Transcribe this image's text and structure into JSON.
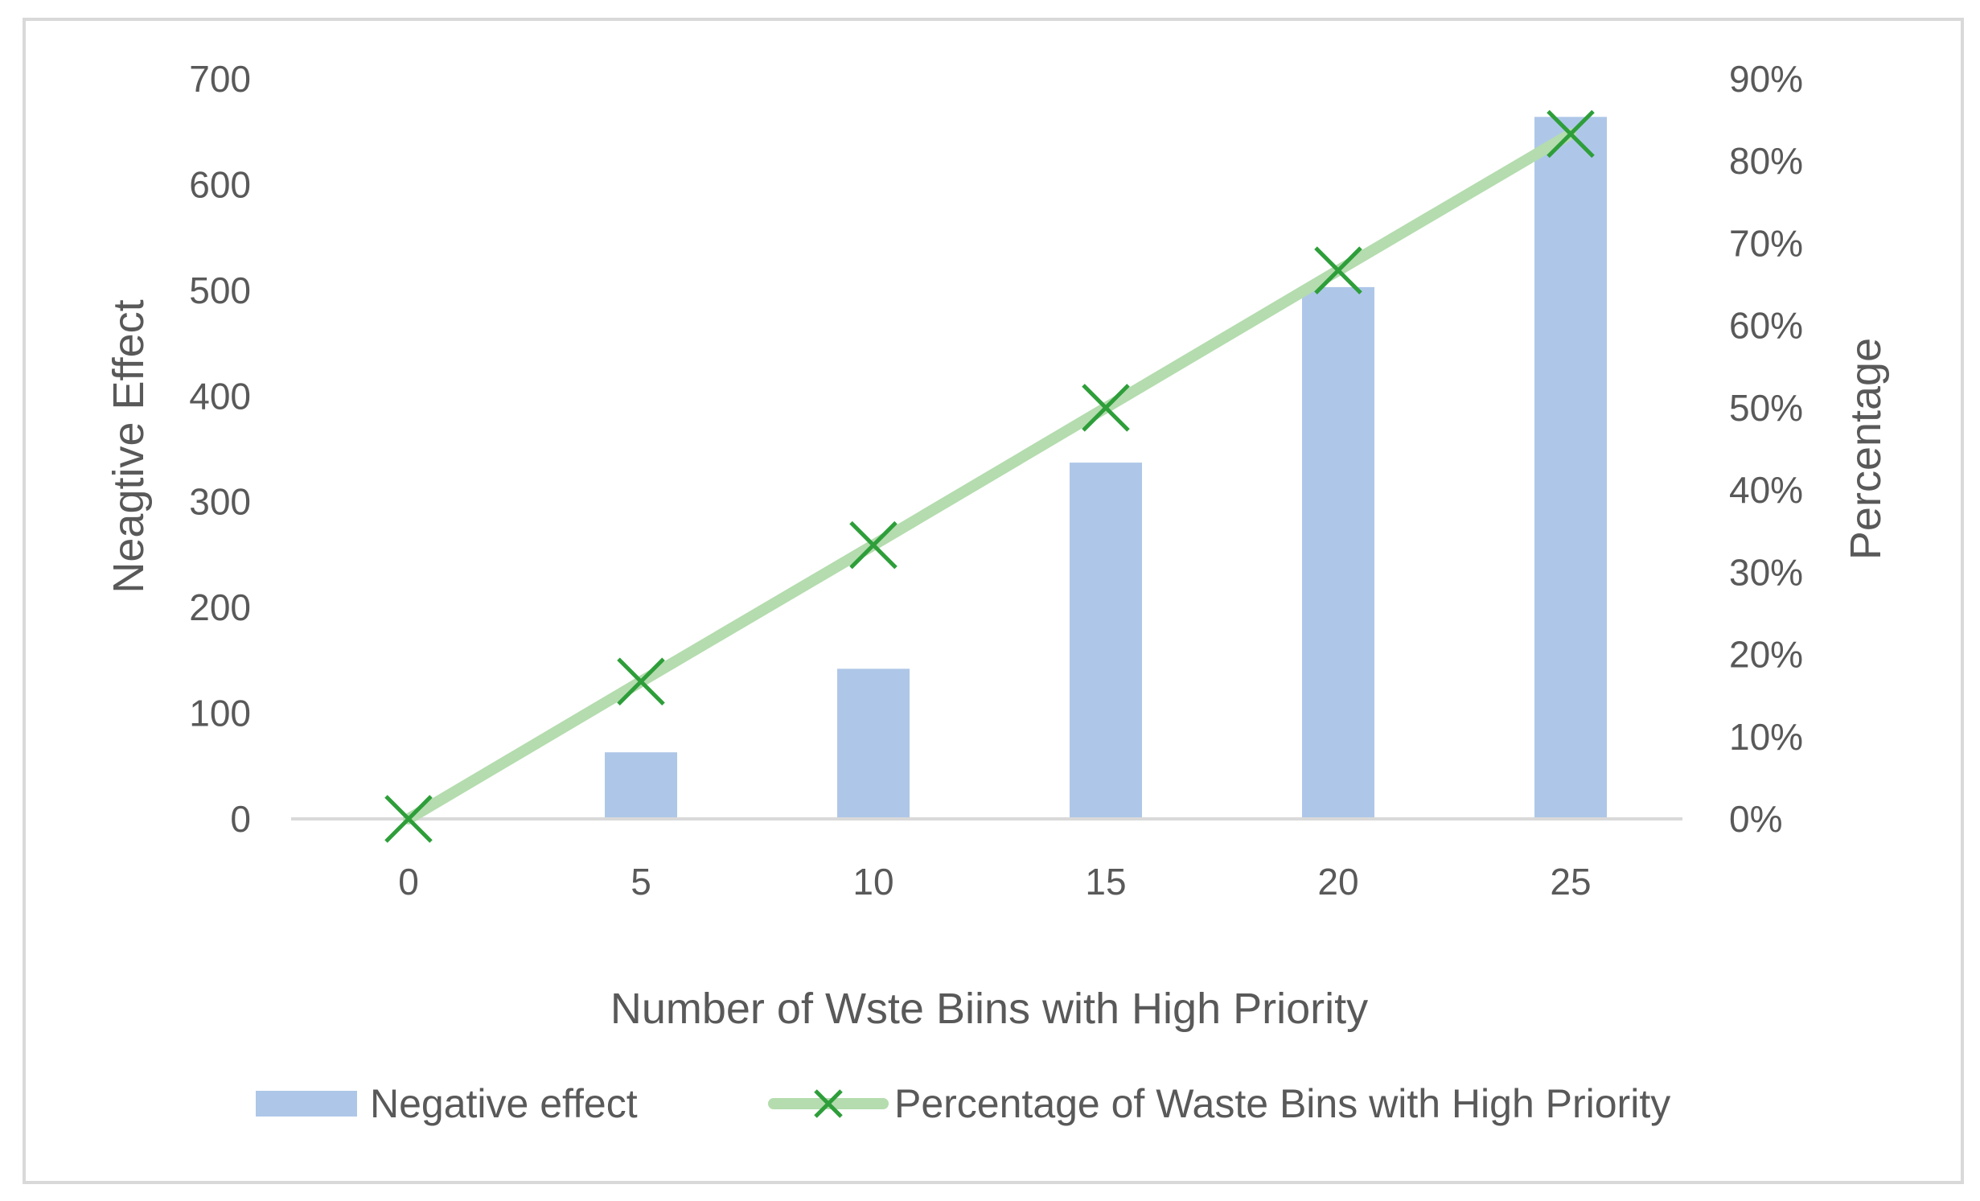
{
  "chart_data": {
    "type": "bar",
    "categories": [
      "0",
      "5",
      "10",
      "15",
      "20",
      "25"
    ],
    "series": [
      {
        "name": "Negative effect",
        "type": "bar",
        "axis": "left",
        "values": [
          0,
          63,
          142,
          337,
          503,
          664
        ]
      },
      {
        "name": "Percentage of Waste Bins with High Priority",
        "type": "line",
        "axis": "right",
        "values": [
          0,
          16.7,
          33.3,
          50,
          66.7,
          83.3
        ]
      }
    ],
    "xlabel": "Number of Wste Biins with High Priority",
    "ylabel": "Neagtive Effect",
    "y2label": "Percentage",
    "ylim": [
      0,
      700
    ],
    "y2lim": [
      0,
      90
    ],
    "yticks": [
      "0",
      "100",
      "200",
      "300",
      "400",
      "500",
      "600",
      "700"
    ],
    "y2ticks": [
      "0%",
      "10%",
      "20%",
      "30%",
      "40%",
      "50%",
      "60%",
      "70%",
      "80%",
      "90%"
    ],
    "legend_position": "bottom",
    "colors": {
      "bar": "#aec7e8",
      "line": "#b4dcae",
      "marker": "#2e9e3a",
      "axis": "#d9d9d9",
      "text": "#595959",
      "border": "#d9d9d9"
    }
  }
}
